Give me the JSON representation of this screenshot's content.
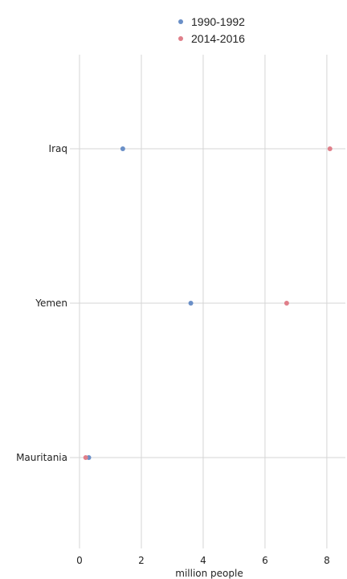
{
  "chart_data": {
    "type": "scatter",
    "xlabel": "million people",
    "ylabel": "",
    "xlim": [
      0,
      8.6
    ],
    "x_ticks": [
      0,
      2,
      4,
      6,
      8
    ],
    "categories": [
      "Iraq",
      "Yemen",
      "Mauritania"
    ],
    "series": [
      {
        "name": "1990-1992",
        "color": "#6a8fc7",
        "values": [
          1.4,
          3.6,
          0.3
        ]
      },
      {
        "name": "2014-2016",
        "color": "#e07f8a",
        "values": [
          8.1,
          6.7,
          0.2
        ]
      }
    ],
    "grid": true,
    "legend_position": "top"
  }
}
